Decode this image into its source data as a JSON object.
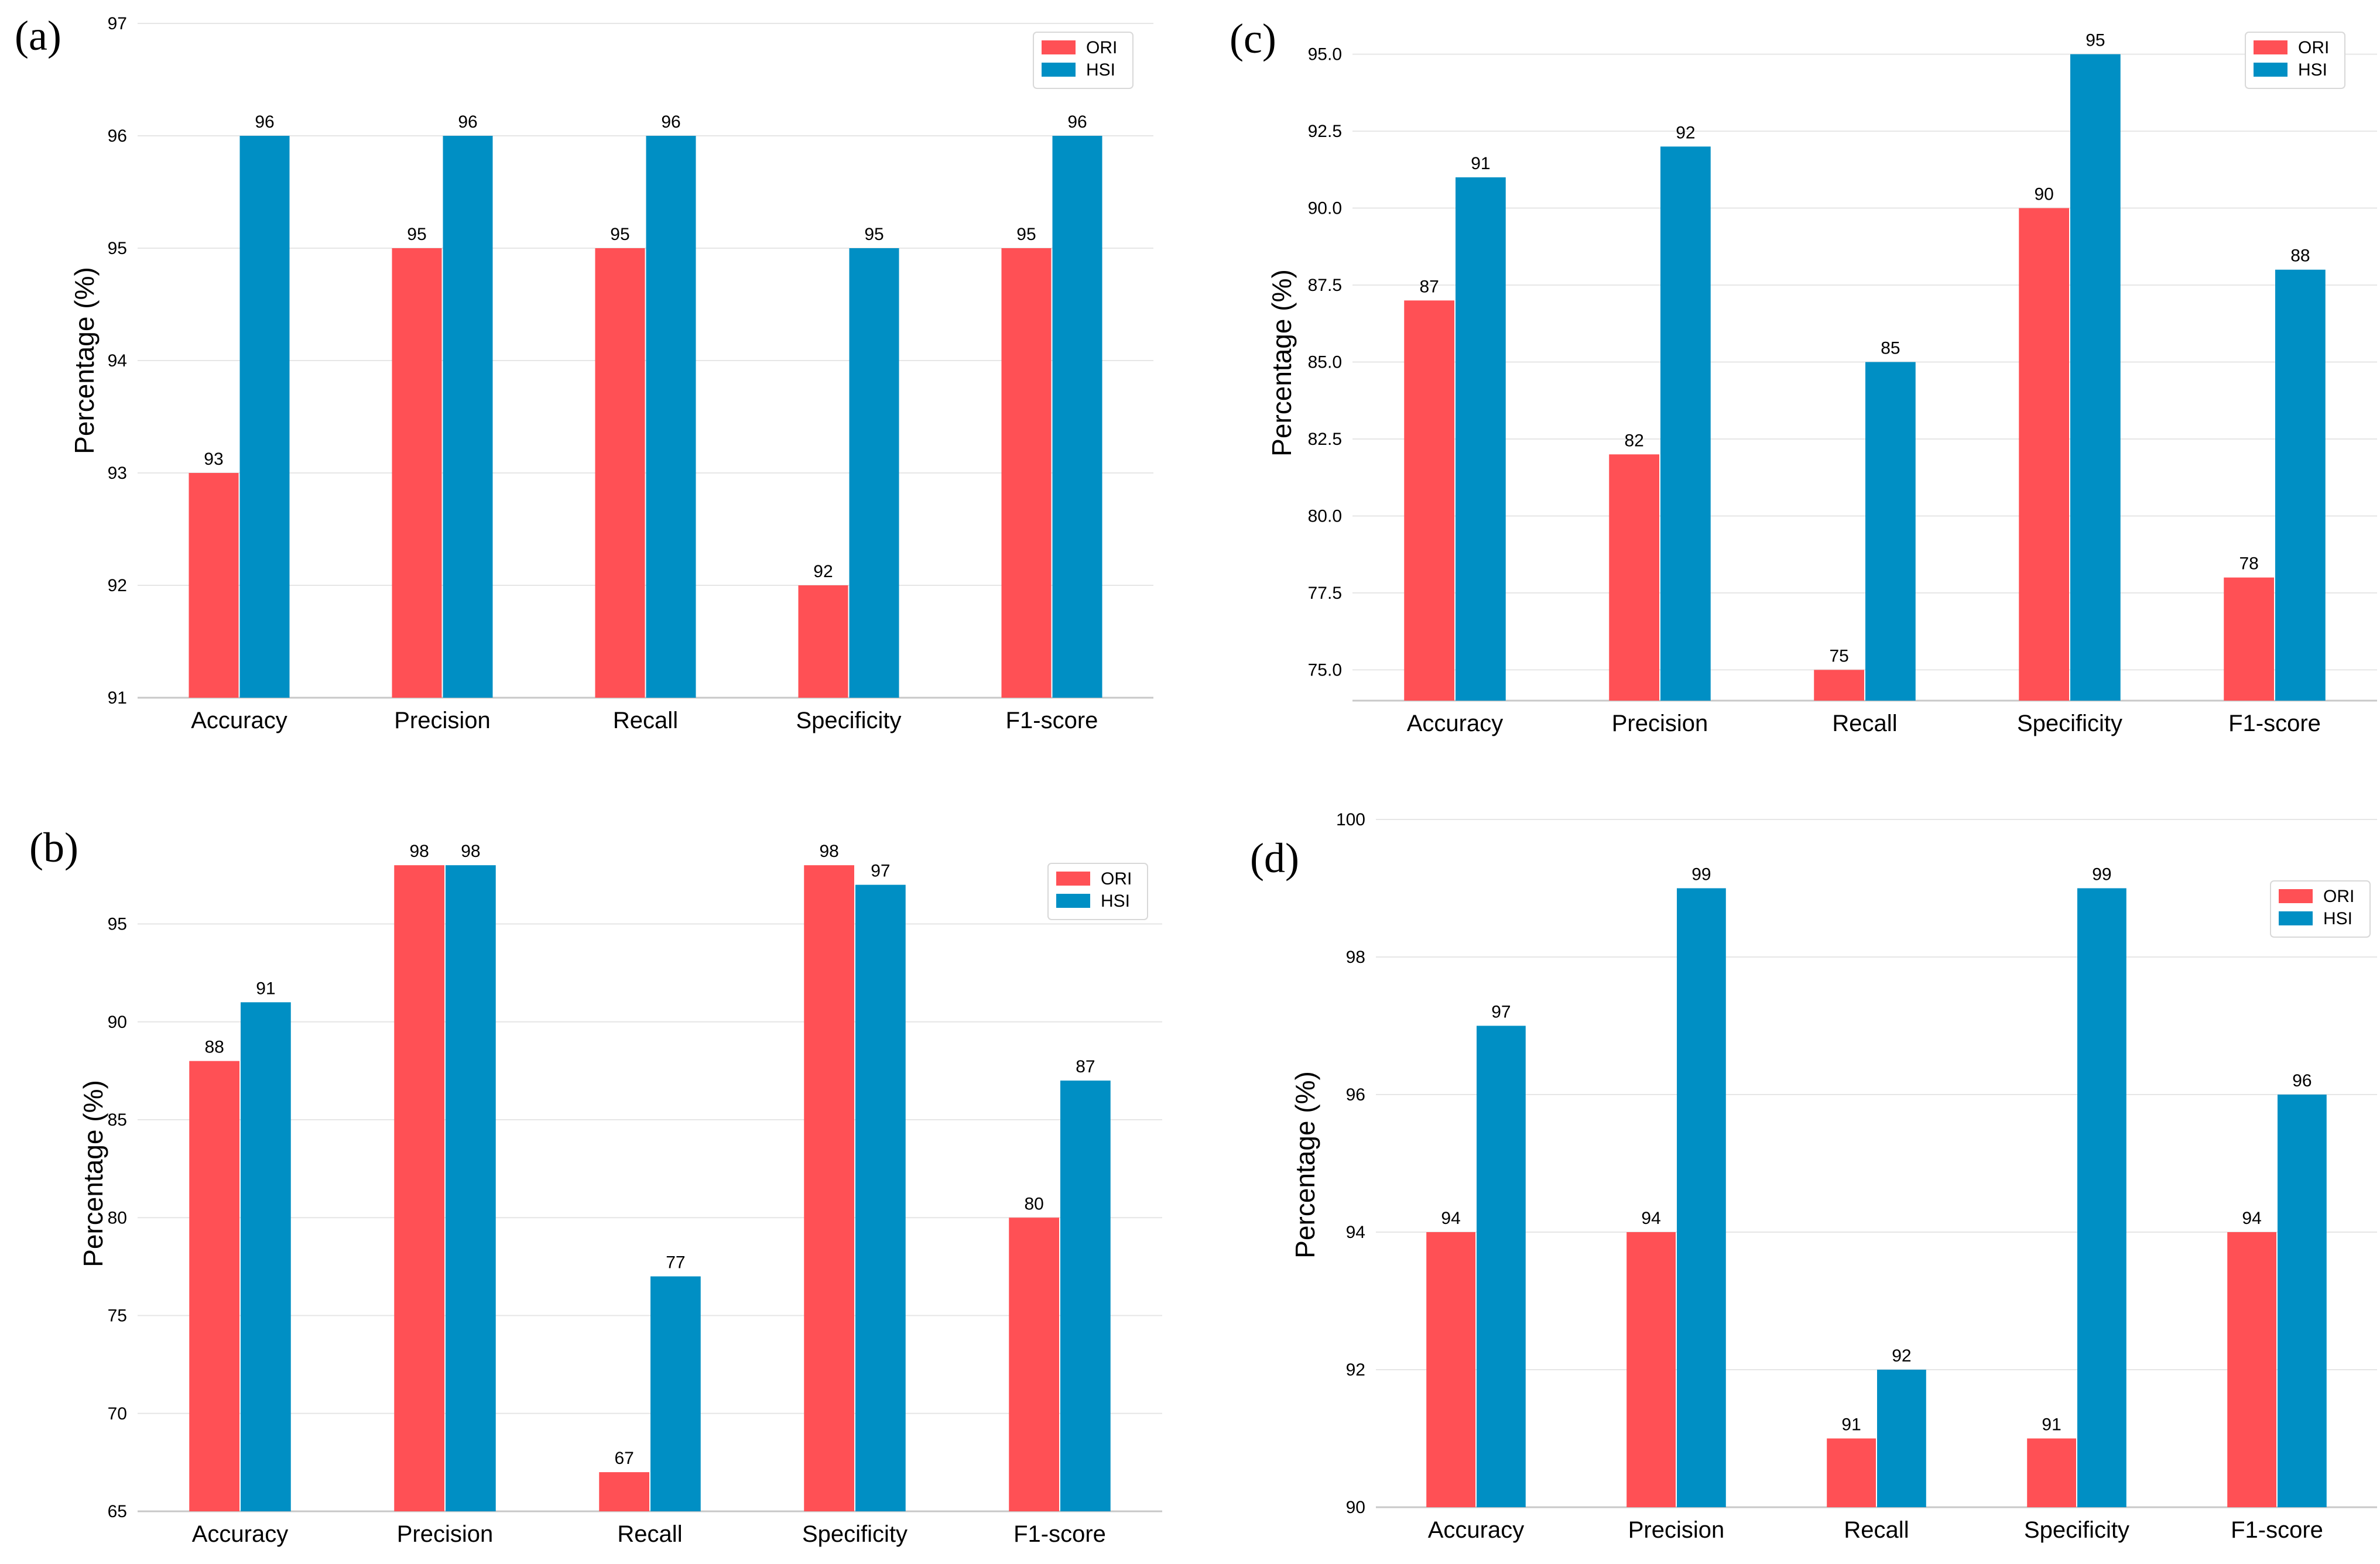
{
  "colors": {
    "ori": "#ff5055",
    "hsi": "#008fc4"
  },
  "chart_data": [
    {
      "type": "bar",
      "panel": "(a)",
      "categories": [
        "Accuracy",
        "Precision",
        "Recall",
        "Specificity",
        "F1-score"
      ],
      "series": [
        {
          "name": "ORI",
          "values": [
            93,
            95,
            95,
            92,
            95
          ]
        },
        {
          "name": "HSI",
          "values": [
            96,
            96,
            96,
            95,
            96
          ]
        }
      ],
      "ylabel": "Percentage (%)",
      "ylim": [
        91,
        97
      ],
      "yticks": [
        91,
        92,
        93,
        94,
        95,
        96,
        97
      ],
      "ytick_labels": [
        "91",
        "92",
        "93",
        "94",
        "95",
        "96",
        "97"
      ],
      "legend": "top-right",
      "grid": true
    },
    {
      "type": "bar",
      "panel": "(b)",
      "categories": [
        "Accuracy",
        "Precision",
        "Recall",
        "Specificity",
        "F1-score"
      ],
      "series": [
        {
          "name": "ORI",
          "values": [
            88,
            98,
            67,
            98,
            80
          ]
        },
        {
          "name": "HSI",
          "values": [
            91,
            98,
            77,
            97,
            87
          ]
        }
      ],
      "ylabel": "Percentage (%)",
      "ylim": [
        65,
        99.5
      ],
      "yticks": [
        65,
        70,
        75,
        80,
        85,
        90,
        95
      ],
      "ytick_labels": [
        "65",
        "70",
        "75",
        "80",
        "85",
        "90",
        "95"
      ],
      "legend": "top-right",
      "grid": true
    },
    {
      "type": "bar",
      "panel": "(c)",
      "categories": [
        "Accuracy",
        "Precision",
        "Recall",
        "Specificity",
        "F1-score"
      ],
      "series": [
        {
          "name": "ORI",
          "values": [
            87,
            82,
            75,
            90,
            78
          ]
        },
        {
          "name": "HSI",
          "values": [
            91,
            92,
            85,
            95,
            88
          ]
        }
      ],
      "ylabel": "Percentage (%)",
      "ylim": [
        74,
        96
      ],
      "yticks": [
        75,
        77.5,
        80,
        82.5,
        85,
        87.5,
        90,
        92.5,
        95
      ],
      "ytick_labels": [
        "75.0",
        "77.5",
        "80.0",
        "82.5",
        "85.0",
        "87.5",
        "90.0",
        "92.5",
        "95.0"
      ],
      "legend": "top-right",
      "grid": true
    },
    {
      "type": "bar",
      "panel": "(d)",
      "categories": [
        "Accuracy",
        "Precision",
        "Recall",
        "Specificity",
        "F1-score"
      ],
      "series": [
        {
          "name": "ORI",
          "values": [
            94,
            94,
            91,
            91,
            94
          ]
        },
        {
          "name": "HSI",
          "values": [
            97,
            99,
            92,
            99,
            96
          ]
        }
      ],
      "ylabel": "Percentage (%)",
      "ylim": [
        90,
        100
      ],
      "yticks": [
        90,
        92,
        94,
        96,
        98,
        100
      ],
      "ytick_labels": [
        "90",
        "92",
        "94",
        "96",
        "98",
        "100"
      ],
      "legend": "top-right",
      "grid": true
    }
  ]
}
